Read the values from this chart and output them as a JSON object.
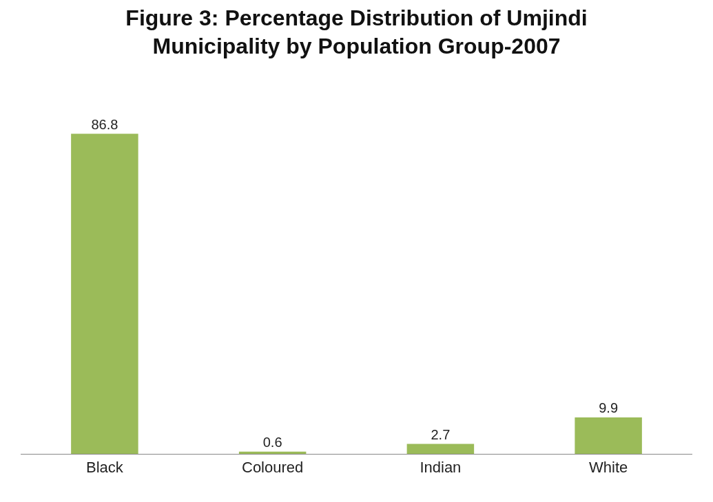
{
  "chart_data": {
    "type": "bar",
    "title": "Figure 3: Percentage Distribution of Umjindi\nMunicipality by Population Group-2007",
    "categories": [
      "Black",
      "Coloured",
      "Indian",
      "White"
    ],
    "values": [
      86.8,
      0.6,
      2.7,
      9.9
    ],
    "color": "#9bbb59",
    "data_labels": true
  }
}
